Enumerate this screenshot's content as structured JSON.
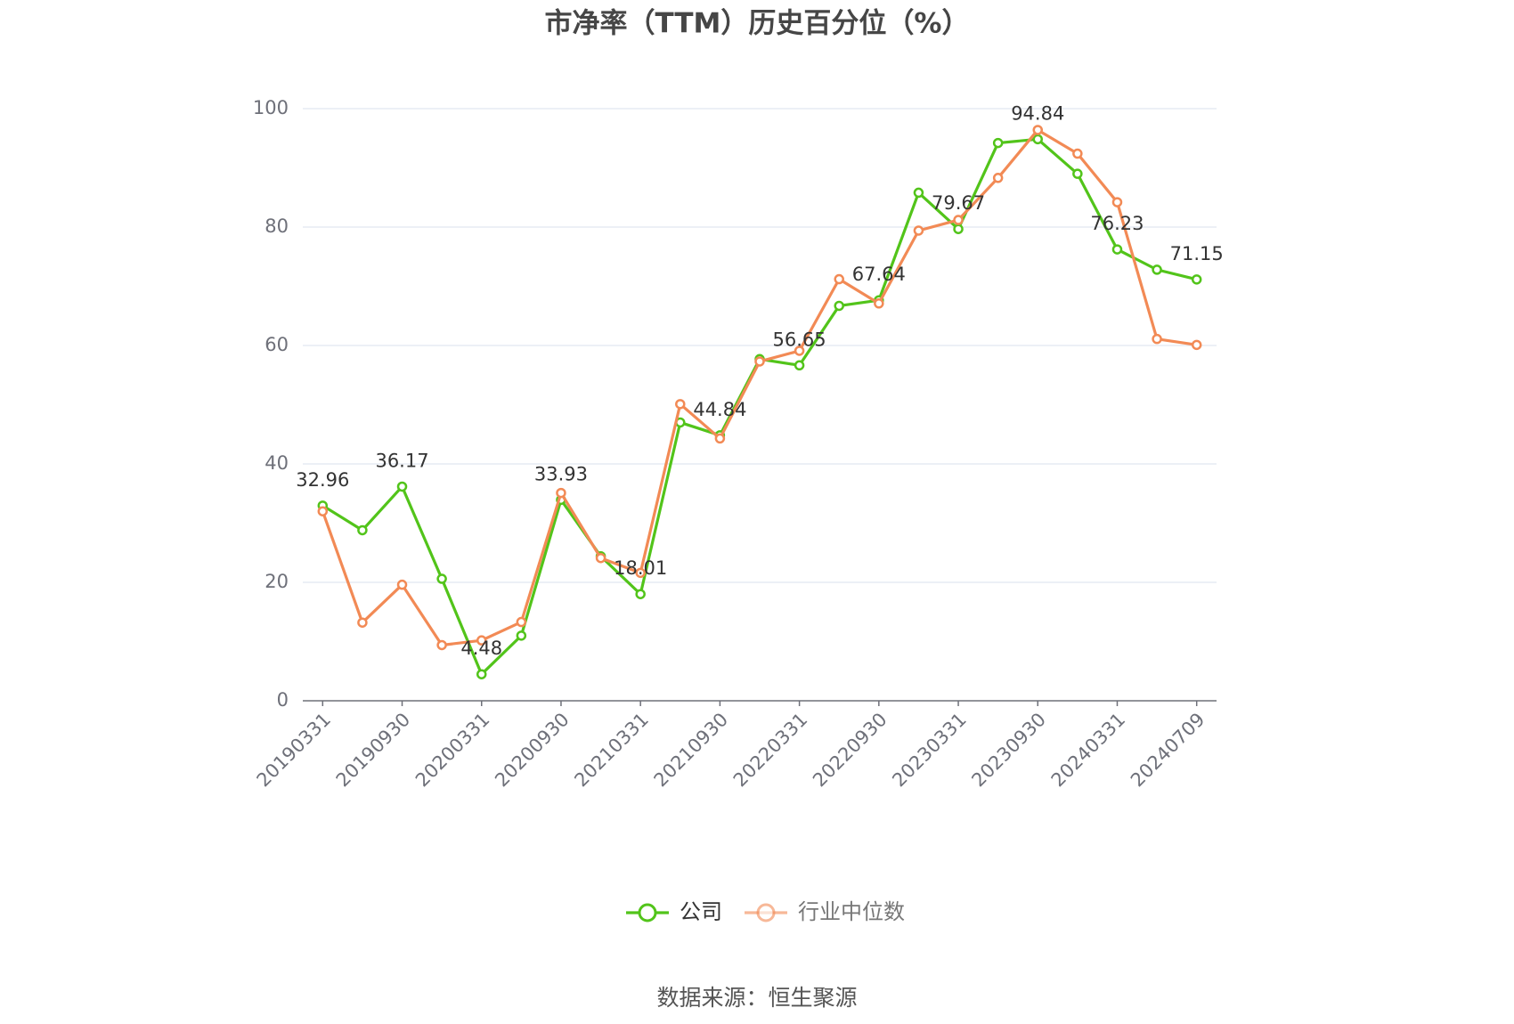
{
  "chart_data": {
    "type": "line",
    "title": "市净率（TTM）历史百分位（%）",
    "source": "数据来源：恒生聚源",
    "categories": [
      "20190331",
      null,
      "20190930",
      null,
      "20200331",
      null,
      "20200930",
      null,
      "20210331",
      null,
      "20210930",
      null,
      "20220331",
      null,
      "20220930",
      null,
      "20230331",
      null,
      "20230930",
      null,
      "20240331",
      null,
      "20240709"
    ],
    "series": [
      {
        "name": "公司",
        "color": "#52c41a",
        "values": [
          32.96,
          28.8,
          36.17,
          20.6,
          4.48,
          11.0,
          33.93,
          24.4,
          18.01,
          47.0,
          44.84,
          57.7,
          56.65,
          66.7,
          67.64,
          85.8,
          79.67,
          94.2,
          94.84,
          89.0,
          76.23,
          72.8,
          71.15
        ],
        "value_labels": [
          "32.96",
          null,
          "36.17",
          null,
          "4.48",
          null,
          "33.93",
          null,
          "18.01",
          null,
          "44.84",
          null,
          "56.65",
          null,
          "67.64",
          null,
          "79.67",
          null,
          "94.84",
          null,
          "76.23",
          null,
          "71.15"
        ]
      },
      {
        "name": "行业中位数",
        "color": "#f28a55",
        "values": [
          32.0,
          13.2,
          19.6,
          9.4,
          10.2,
          13.3,
          35.1,
          24.1,
          21.6,
          50.1,
          44.3,
          57.3,
          59.1,
          71.2,
          67.1,
          79.4,
          81.2,
          88.3,
          96.4,
          92.4,
          84.2,
          61.1,
          60.1
        ]
      }
    ],
    "ylim": [
      0,
      100
    ],
    "yticks": [
      0,
      20,
      40,
      60,
      80,
      100
    ],
    "grid": true,
    "legend": "bottom"
  }
}
